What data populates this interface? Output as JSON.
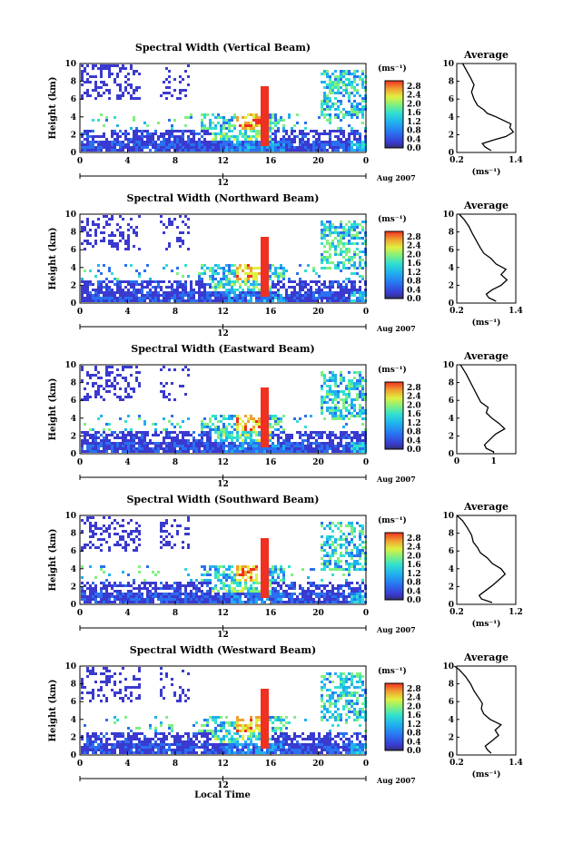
{
  "chart_data": {
    "type": "heatmap",
    "x_axis_label": "Local Time",
    "y_axis_label": "Height (km)",
    "x_ticks": [
      "0",
      "4",
      "8",
      "12",
      "16",
      "20",
      "0"
    ],
    "y_ticks": [
      "0",
      "2",
      "4",
      "6",
      "8",
      "10"
    ],
    "date_tick": "12",
    "date_label": "Aug 2007",
    "xlim": [
      0,
      24
    ],
    "ylim": [
      0,
      10
    ],
    "colorbar": {
      "unit": "(ms⁻¹)",
      "ticks": [
        "0.0",
        "0.4",
        "0.8",
        "1.2",
        "1.6",
        "2.0",
        "2.4",
        "2.8"
      ],
      "range": [
        0,
        3.0
      ],
      "colors": [
        "#303070",
        "#3a3ad0",
        "#2a70f0",
        "#20b0f0",
        "#30e0d0",
        "#80f080",
        "#e0f040",
        "#f0a030",
        "#f03020"
      ]
    },
    "panels": [
      {
        "title": "Spectral Width (Vertical Beam)",
        "avg_title": "Average",
        "avg_unit": "(ms⁻¹)",
        "avg_ticks": [
          "0.2",
          "1.4"
        ],
        "avg_xlim": [
          0.2,
          1.4
        ],
        "avg_profile": [
          [
            0.9,
            0.2
          ],
          [
            0.78,
            0.6
          ],
          [
            0.72,
            1.0
          ],
          [
            0.95,
            1.4
          ],
          [
            1.2,
            1.8
          ],
          [
            1.35,
            2.3
          ],
          [
            1.28,
            2.8
          ],
          [
            1.3,
            3.2
          ],
          [
            1.15,
            3.6
          ],
          [
            1.0,
            4.0
          ],
          [
            0.82,
            4.4
          ],
          [
            0.75,
            4.8
          ],
          [
            0.62,
            5.3
          ],
          [
            0.55,
            6.0
          ],
          [
            0.5,
            6.8
          ],
          [
            0.55,
            7.6
          ],
          [
            0.48,
            8.4
          ],
          [
            0.4,
            9.2
          ],
          [
            0.32,
            10.0
          ]
        ]
      },
      {
        "title": "Spectral Width (Northward Beam)",
        "avg_title": "Average",
        "avg_unit": "(ms⁻¹)",
        "avg_ticks": [
          "0.2",
          "1.4"
        ],
        "avg_xlim": [
          0.2,
          1.4
        ],
        "avg_profile": [
          [
            1.0,
            0.2
          ],
          [
            0.85,
            0.6
          ],
          [
            0.8,
            1.0
          ],
          [
            0.92,
            1.5
          ],
          [
            1.1,
            2.0
          ],
          [
            1.22,
            2.6
          ],
          [
            1.1,
            3.2
          ],
          [
            1.2,
            3.8
          ],
          [
            1.0,
            4.4
          ],
          [
            0.9,
            5.0
          ],
          [
            0.75,
            5.6
          ],
          [
            0.68,
            6.2
          ],
          [
            0.6,
            7.0
          ],
          [
            0.52,
            7.8
          ],
          [
            0.45,
            8.6
          ],
          [
            0.35,
            9.4
          ],
          [
            0.25,
            10.0
          ]
        ]
      },
      {
        "title": "Spectral Width (Eastward Beam)",
        "avg_title": "Average",
        "avg_unit": "",
        "avg_ticks": [
          "0",
          "1"
        ],
        "avg_xlim": [
          0,
          1.6
        ],
        "avg_profile": [
          [
            1.0,
            0.2
          ],
          [
            0.8,
            0.6
          ],
          [
            0.75,
            1.0
          ],
          [
            0.9,
            1.6
          ],
          [
            1.05,
            2.2
          ],
          [
            1.3,
            2.8
          ],
          [
            1.15,
            3.4
          ],
          [
            0.95,
            4.0
          ],
          [
            0.8,
            4.6
          ],
          [
            0.85,
            5.2
          ],
          [
            0.65,
            5.8
          ],
          [
            0.55,
            6.6
          ],
          [
            0.45,
            7.4
          ],
          [
            0.35,
            8.2
          ],
          [
            0.25,
            9.0
          ],
          [
            0.1,
            10.0
          ]
        ]
      },
      {
        "title": "Spectral Width (Southward Beam)",
        "avg_title": "Average",
        "avg_unit": "(ms⁻¹)",
        "avg_ticks": [
          "0.2",
          "1.2"
        ],
        "avg_xlim": [
          0.2,
          1.2
        ],
        "avg_profile": [
          [
            0.8,
            0.2
          ],
          [
            0.62,
            0.6
          ],
          [
            0.58,
            1.0
          ],
          [
            0.7,
            1.6
          ],
          [
            0.82,
            2.2
          ],
          [
            0.92,
            2.8
          ],
          [
            1.02,
            3.4
          ],
          [
            0.95,
            4.0
          ],
          [
            0.8,
            4.6
          ],
          [
            0.72,
            5.2
          ],
          [
            0.6,
            5.8
          ],
          [
            0.55,
            6.4
          ],
          [
            0.48,
            7.0
          ],
          [
            0.45,
            7.8
          ],
          [
            0.38,
            8.6
          ],
          [
            0.3,
            9.4
          ],
          [
            0.2,
            10.0
          ]
        ]
      },
      {
        "title": "Spectral Width (Westward Beam)",
        "avg_title": "Average",
        "avg_unit": "(ms⁻¹)",
        "avg_ticks": [
          "0.2",
          "1.4"
        ],
        "avg_xlim": [
          0.2,
          1.4
        ],
        "avg_profile": [
          [
            0.9,
            0.2
          ],
          [
            0.82,
            0.6
          ],
          [
            0.78,
            1.0
          ],
          [
            0.92,
            1.6
          ],
          [
            1.05,
            2.2
          ],
          [
            0.98,
            2.8
          ],
          [
            1.1,
            3.4
          ],
          [
            0.88,
            4.0
          ],
          [
            0.75,
            4.6
          ],
          [
            0.7,
            5.2
          ],
          [
            0.72,
            5.8
          ],
          [
            0.65,
            6.4
          ],
          [
            0.55,
            7.2
          ],
          [
            0.48,
            8.0
          ],
          [
            0.38,
            8.8
          ],
          [
            0.25,
            9.6
          ],
          [
            0.15,
            10.0
          ]
        ]
      }
    ]
  }
}
